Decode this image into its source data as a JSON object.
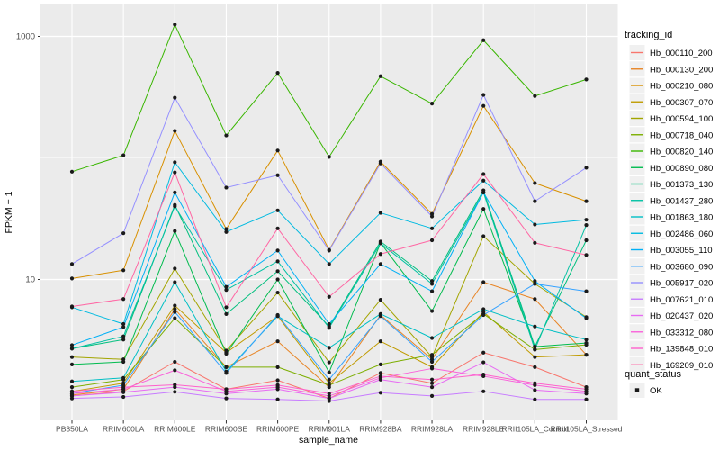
{
  "figure": {
    "panel_bg": "#EBEBEB",
    "grid_color": "#FFFFFF",
    "point_color": "#1A1A1A",
    "tick_color": "#333333",
    "legend_key_bg": "#F0F0F0"
  },
  "axes": {
    "x_title": "sample_name",
    "y_title": "FPKM + 1"
  },
  "legend": {
    "tracking_title": "tracking_id",
    "quant_title": "quant_status",
    "quant_items": [
      {
        "label": "OK"
      }
    ]
  },
  "chart_data": {
    "type": "line",
    "title": "",
    "xlabel": "sample_name",
    "ylabel": "FPKM + 1",
    "y_scale": "log10",
    "grid": true,
    "legend_position": "right",
    "y_ticks": [
      {
        "label": "1000",
        "value": 1000
      },
      {
        "label": "10",
        "value": 10
      }
    ],
    "y_minor_ticks": [
      1,
      100
    ],
    "ylim": [
      0.69,
      1800
    ],
    "categories": [
      "PB350LA",
      "RRIM600LA",
      "RRIM600LE",
      "RRIM600SE",
      "RRIM600PE",
      "RRIM901LA",
      "RRIM928BA",
      "RRIM928LA",
      "RRIM928LE",
      "RRII105LA_Control",
      "RRII105LA_Stressed"
    ],
    "point_legend": {
      "title": "quant_status",
      "items": [
        "OK"
      ]
    },
    "series": [
      {
        "name": "Hb_000110_200",
        "color": "#F8766D",
        "values": [
          1.1,
          1.2,
          2.1,
          1.25,
          1.48,
          1.05,
          1.7,
          1.4,
          2.5,
          1.9,
          1.3
        ]
      },
      {
        "name": "Hb_000130_200",
        "color": "#E88526",
        "values": [
          1.12,
          1.25,
          5.7,
          1.9,
          3.1,
          1.3,
          5.1,
          2.2,
          9.5,
          6.9,
          2.4
        ]
      },
      {
        "name": "Hb_000210_080",
        "color": "#D89000",
        "values": [
          10.2,
          11.9,
          167,
          26.0,
          115,
          17.5,
          93.0,
          34.6,
          268,
          62.0,
          44.0
        ]
      },
      {
        "name": "Hb_000307_070",
        "color": "#C09B00",
        "values": [
          1.2,
          1.4,
          6.1,
          2.5,
          5.0,
          1.4,
          3.1,
          1.9,
          5.4,
          2.3,
          2.4
        ]
      },
      {
        "name": "Hb_000594_100",
        "color": "#A3A500",
        "values": [
          2.3,
          2.2,
          12.3,
          2.6,
          7.8,
          2.08,
          6.8,
          2.3,
          22.7,
          9.2,
          4.9
        ]
      },
      {
        "name": "Hb_000718_040",
        "color": "#7CAE00",
        "values": [
          1.3,
          1.5,
          4.8,
          1.9,
          1.9,
          1.35,
          2.0,
          2.4,
          5.2,
          2.65,
          2.9
        ]
      },
      {
        "name": "Hb_000820_140",
        "color": "#39B600",
        "values": [
          77.0,
          105,
          1250,
          153,
          500,
          102,
          470,
          280,
          930,
          323,
          442
        ]
      },
      {
        "name": "Hb_000890_080",
        "color": "#00BB4E",
        "values": [
          2.0,
          2.1,
          25.0,
          2.45,
          10.0,
          1.72,
          20.0,
          5.5,
          38.0,
          2.8,
          3.0
        ]
      },
      {
        "name": "Hb_001373_130",
        "color": "#00BF7D",
        "values": [
          2.7,
          3.2,
          41.0,
          5.2,
          11.7,
          4.1,
          20.5,
          9.7,
          54.0,
          2.8,
          21.0
        ]
      },
      {
        "name": "Hb_001437_280",
        "color": "#00C1A3",
        "values": [
          2.7,
          3.4,
          40.0,
          8.2,
          14.1,
          4.0,
          19.8,
          9.2,
          52.0,
          2.65,
          28.0
        ]
      },
      {
        "name": "Hb_001863_180",
        "color": "#00BFC4",
        "values": [
          1.45,
          1.55,
          9.5,
          1.75,
          5.0,
          2.74,
          5.2,
          3.3,
          5.7,
          4.1,
          3.2
        ]
      },
      {
        "name": "Hb_002486_060",
        "color": "#00BAE0",
        "values": [
          5.9,
          4.3,
          92.0,
          24.6,
          37.0,
          13.4,
          35.3,
          26.3,
          65.0,
          28.3,
          31.0
        ]
      },
      {
        "name": "Hb_003055_110",
        "color": "#00B0F6",
        "values": [
          2.88,
          4.06,
          52.0,
          8.7,
          17.3,
          4.3,
          13.4,
          8.0,
          52.0,
          9.7,
          4.8
        ]
      },
      {
        "name": "Hb_003680_090",
        "color": "#35A2FF",
        "values": [
          1.15,
          1.35,
          5.4,
          1.7,
          5.1,
          1.5,
          5.0,
          2.1,
          5.1,
          9.2,
          8.0
        ]
      },
      {
        "name": "Hb_005917_020",
        "color": "#9590FF",
        "values": [
          13.4,
          24.0,
          313,
          57.0,
          72.0,
          17.3,
          90.0,
          33.0,
          330,
          44.0,
          83.0
        ]
      },
      {
        "name": "Hb_007621_010",
        "color": "#C77CFF",
        "values": [
          1.05,
          1.08,
          1.19,
          1.05,
          1.03,
          1.0,
          1.17,
          1.1,
          1.2,
          1.03,
          1.03
        ]
      },
      {
        "name": "Hb_020437_020",
        "color": "#E76BF3",
        "values": [
          1.1,
          1.18,
          1.3,
          1.15,
          1.25,
          1.05,
          1.5,
          1.3,
          2.08,
          1.23,
          1.15
        ]
      },
      {
        "name": "Hb_033312_080",
        "color": "#FA62DB",
        "values": [
          1.15,
          1.25,
          1.79,
          1.2,
          1.3,
          1.1,
          1.55,
          1.85,
          1.6,
          1.35,
          1.2
        ]
      },
      {
        "name": "Hb_139848_010",
        "color": "#FF61CC",
        "values": [
          1.2,
          1.3,
          1.36,
          1.25,
          1.35,
          1.15,
          1.6,
          1.5,
          1.65,
          1.4,
          1.25
        ]
      },
      {
        "name": "Hb_169209_010",
        "color": "#FF67A4",
        "values": [
          6.0,
          6.9,
          76.0,
          5.9,
          26.3,
          7.2,
          16.2,
          21.0,
          73.6,
          20.0,
          15.9
        ]
      }
    ]
  }
}
